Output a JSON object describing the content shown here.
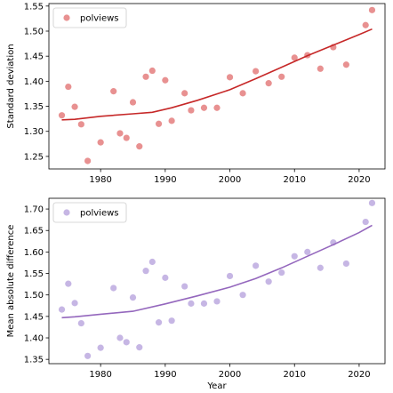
{
  "chart_data": [
    {
      "type": "scatter",
      "ylabel": "Standard deviation",
      "xlabel": "",
      "xlim": [
        1972,
        2024
      ],
      "ylim": [
        1.225,
        1.555
      ],
      "xticks": [
        1980,
        1990,
        2000,
        2010,
        2020
      ],
      "xtick_labels": [
        "1980",
        "1990",
        "2000",
        "2010",
        "2020"
      ],
      "yticks": [
        1.25,
        1.3,
        1.35,
        1.4,
        1.45,
        1.5,
        1.55
      ],
      "ytick_labels": [
        "1.25",
        "1.30",
        "1.35",
        "1.40",
        "1.45",
        "1.50",
        "1.55"
      ],
      "legend": {
        "label": "polviews",
        "position": "upper left"
      },
      "point_color": "#e06c6c",
      "line_color": "#c62828",
      "points": {
        "x": [
          1974,
          1975,
          1976,
          1977,
          1978,
          1980,
          1982,
          1983,
          1984,
          1985,
          1986,
          1987,
          1988,
          1989,
          1990,
          1991,
          1993,
          1994,
          1996,
          1998,
          2000,
          2002,
          2004,
          2006,
          2008,
          2010,
          2012,
          2014,
          2016,
          2018,
          2021,
          2022
        ],
        "y": [
          1.332,
          1.389,
          1.349,
          1.314,
          1.241,
          1.278,
          1.38,
          1.296,
          1.287,
          1.358,
          1.27,
          1.409,
          1.421,
          1.315,
          1.402,
          1.321,
          1.376,
          1.342,
          1.347,
          1.347,
          1.408,
          1.376,
          1.42,
          1.396,
          1.409,
          1.447,
          1.452,
          1.425,
          1.468,
          1.433,
          1.512,
          1.542
        ]
      },
      "trend": {
        "x": [
          1974,
          1976,
          1980,
          1985,
          1988,
          1991,
          1995,
          2000,
          2004,
          2008,
          2012,
          2016,
          2020,
          2022
        ],
        "y": [
          1.323,
          1.324,
          1.33,
          1.335,
          1.338,
          1.347,
          1.362,
          1.383,
          1.405,
          1.428,
          1.451,
          1.472,
          1.493,
          1.504
        ]
      }
    },
    {
      "type": "scatter",
      "ylabel": "Mean absolute difference",
      "xlabel": "Year",
      "xlim": [
        1972,
        2024
      ],
      "ylim": [
        1.34,
        1.725
      ],
      "xticks": [
        1980,
        1990,
        2000,
        2010,
        2020
      ],
      "xtick_labels": [
        "1980",
        "1990",
        "2000",
        "2010",
        "2020"
      ],
      "yticks": [
        1.35,
        1.4,
        1.45,
        1.5,
        1.55,
        1.6,
        1.65,
        1.7
      ],
      "ytick_labels": [
        "1.35",
        "1.40",
        "1.45",
        "1.50",
        "1.55",
        "1.60",
        "1.65",
        "1.70"
      ],
      "legend": {
        "label": "polviews",
        "position": "upper left"
      },
      "point_color": "#b39ddb",
      "line_color": "#9467bd",
      "points": {
        "x": [
          1974,
          1975,
          1976,
          1977,
          1978,
          1980,
          1982,
          1983,
          1984,
          1985,
          1986,
          1987,
          1988,
          1989,
          1990,
          1991,
          1993,
          1994,
          1996,
          1998,
          2000,
          2002,
          2004,
          2006,
          2008,
          2010,
          2012,
          2014,
          2016,
          2018,
          2021,
          2022
        ],
        "y": [
          1.466,
          1.526,
          1.481,
          1.434,
          1.358,
          1.377,
          1.516,
          1.4,
          1.39,
          1.494,
          1.378,
          1.556,
          1.577,
          1.436,
          1.54,
          1.44,
          1.52,
          1.48,
          1.48,
          1.485,
          1.544,
          1.5,
          1.568,
          1.531,
          1.552,
          1.59,
          1.6,
          1.563,
          1.622,
          1.573,
          1.67,
          1.714
        ]
      },
      "trend": {
        "x": [
          1974,
          1976,
          1980,
          1985,
          1990,
          1995,
          2000,
          2004,
          2008,
          2012,
          2016,
          2020,
          2022
        ],
        "y": [
          1.447,
          1.449,
          1.455,
          1.462,
          1.479,
          1.498,
          1.518,
          1.538,
          1.563,
          1.59,
          1.617,
          1.645,
          1.662
        ]
      }
    }
  ]
}
